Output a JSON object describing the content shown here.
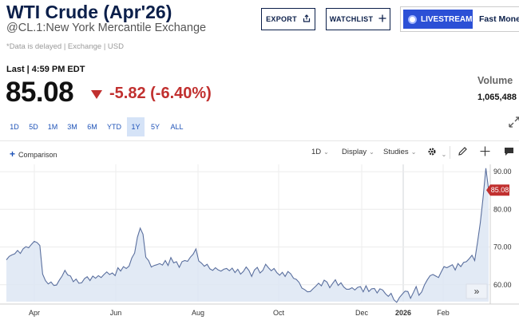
{
  "header": {
    "title": "WTI Crude (Apr'26)",
    "subtitle": "@CL.1:New York Mercantile Exchange",
    "note": "*Data is delayed | Exchange | USD"
  },
  "actions": {
    "export_label": "EXPORT",
    "export_icon": "share-icon",
    "watchlist_label": "WATCHLIST",
    "watchlist_icon": "plus-icon",
    "livestream_label": "LIVESTREAM",
    "fastmoney_label": "Fast Money"
  },
  "quote": {
    "last_label": "Last | 4:59 PM EDT",
    "price": "85.08",
    "change": "-5.82 (-6.40%)",
    "direction": "down",
    "volume_label": "Volume",
    "volume_value": "1,065,488"
  },
  "ranges": [
    "1D",
    "5D",
    "1M",
    "3M",
    "6M",
    "YTD",
    "1Y",
    "5Y",
    "ALL"
  ],
  "active_range": "1Y",
  "toolbar": {
    "comparison_label": "Comparison",
    "interval_label": "1D",
    "display_label": "Display",
    "studies_label": "Studies",
    "icons": [
      "gear-icon",
      "pencil-icon",
      "crosshair-icon",
      "comment-icon"
    ]
  },
  "colors": {
    "brand": "#0b1f4a",
    "accent": "#2b50d6",
    "negative": "#c1302f",
    "line": "#5a6f9e",
    "fill": "#dde6f3"
  },
  "chart_data": {
    "type": "area",
    "x_ticks": [
      "Apr",
      "Jun",
      "Aug",
      "Oct",
      "Dec",
      "2026",
      "Feb"
    ],
    "y_ticks": [
      "60.00",
      "70.00",
      "80.00",
      "90.00"
    ],
    "ylim": [
      55.5,
      91.5
    ],
    "last_price_label": "85.08",
    "series": [
      {
        "values": [
          66.6,
          67.5,
          67.9,
          68.2,
          69.1,
          68.3,
          69.5,
          70.1,
          69.8,
          70.7,
          71.5,
          71.2,
          70.4,
          62.8,
          61.1,
          60.2,
          60.7,
          59.8,
          59.9,
          61.2,
          62.3,
          63.8,
          62.6,
          62.3,
          60.8,
          61.5,
          60.4,
          60.5,
          61.6,
          62.1,
          61.1,
          62.3,
          61.7,
          62.4,
          61.9,
          62.7,
          63.4,
          62.7,
          63.1,
          62.4,
          64.5,
          63.6,
          64.8,
          64.3,
          64.9,
          67.1,
          68.4,
          72.6,
          75.0,
          73.4,
          67.3,
          66.4,
          64.7,
          65.1,
          65.3,
          65.6,
          65.2,
          66.4,
          65.1,
          67.2,
          65.8,
          66.1,
          64.6,
          66.1,
          66.4,
          66.2,
          67.3,
          68.1,
          69.5,
          66.3,
          65.7,
          64.9,
          65.4,
          64.2,
          63.8,
          64.5,
          63.9,
          63.6,
          64.1,
          64.3,
          63.7,
          64.4,
          63.2,
          64.1,
          62.8,
          63.5,
          64.7,
          63.8,
          62.2,
          63.9,
          64.6,
          63.1,
          63.8,
          65.4,
          64.5,
          63.7,
          64.3,
          63.2,
          62.5,
          63.3,
          62.2,
          63.5,
          62.9,
          61.7,
          61.4,
          60.6,
          59.1,
          58.7,
          58.1,
          58.2,
          58.9,
          59.6,
          60.4,
          59.7,
          61.2,
          60.7,
          59.2,
          60.3,
          61.3,
          59.8,
          60.5,
          59.4,
          58.8,
          58.8,
          59.2,
          58.6,
          59.3,
          59.5,
          58.1,
          59.7,
          58.2,
          58.9,
          59.0,
          57.8,
          58.9,
          58.6,
          57.6,
          56.9,
          57.7,
          56.0,
          55.3,
          56.6,
          57.5,
          58.3,
          58.2,
          56.4,
          57.9,
          59.5,
          57.2,
          58.1,
          60.0,
          61.3,
          62.4,
          62.7,
          62.3,
          61.9,
          63.4,
          64.8,
          64.5,
          64.9,
          65.3,
          63.9,
          65.6,
          64.8,
          65.9,
          66.1,
          66.9,
          67.8,
          66.4,
          71.2,
          76.4,
          83.1,
          90.9,
          85.1
        ]
      }
    ]
  }
}
